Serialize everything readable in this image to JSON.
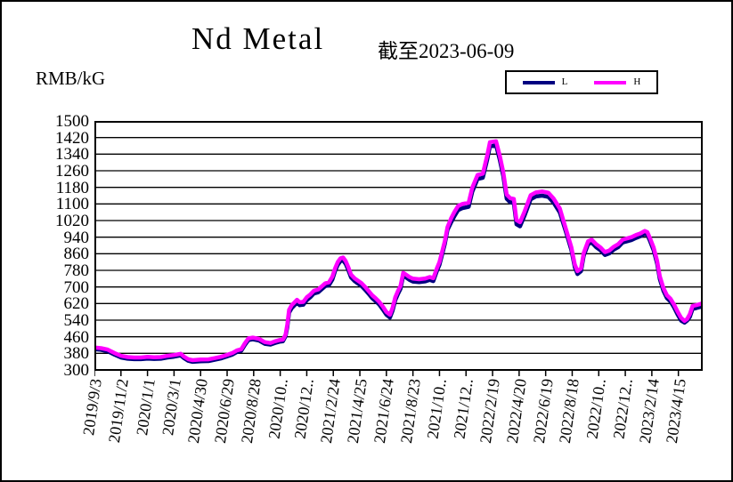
{
  "header": {
    "title": "Nd Metal",
    "subtitle": "截至2023-06-09",
    "y_unit_label": "RMB/kG"
  },
  "legend": {
    "position": "top-right",
    "items": [
      {
        "label": "L",
        "color": "#000080"
      },
      {
        "label": "H",
        "color": "#FF00FF"
      }
    ]
  },
  "colors": {
    "low_series": "#000080",
    "high_series": "#FF00FF",
    "axis": "#000000",
    "background": "#FFFFFF"
  },
  "chart_data": {
    "type": "line",
    "title": "Nd Metal 截至2023-06-09",
    "xlabel": "",
    "ylabel": "RMB/kG",
    "ylim": [
      300,
      1500
    ],
    "y_ticks": [
      300,
      380,
      460,
      540,
      620,
      700,
      780,
      860,
      940,
      1020,
      1100,
      1180,
      1260,
      1340,
      1420,
      1500
    ],
    "grid": "horizontal",
    "legend_position": "top-right",
    "x_domain_days": [
      0,
      1375
    ],
    "x_tick_days": [
      0,
      60,
      120,
      180,
      240,
      300,
      360,
      420,
      480,
      540,
      600,
      660,
      720,
      780,
      840,
      900,
      960,
      1020,
      1080,
      1140,
      1200,
      1260,
      1320
    ],
    "x_tick_labels": [
      "2019/9/3",
      "2019/11/2",
      "2020/1/1",
      "2020/3/1",
      "2020/4/30",
      "2020/6/29",
      "2020/8/28",
      "2020/10..",
      "2020/12..",
      "2021/2/24",
      "2021/4/25",
      "2021/6/24",
      "2021/8/23",
      "2021/10..",
      "2021/12..",
      "2022/2/19",
      "2022/4/20",
      "2022/6/19",
      "2022/8/18",
      "2022/10..",
      "2022/12..",
      "2023/2/14",
      "2023/4/15"
    ],
    "days": [
      0,
      15,
      30,
      45,
      60,
      75,
      90,
      105,
      120,
      135,
      150,
      165,
      180,
      195,
      203,
      212,
      222,
      240,
      258,
      272,
      285,
      300,
      312,
      322,
      332,
      340,
      348,
      358,
      372,
      385,
      398,
      408,
      418,
      426,
      432,
      436,
      440,
      446,
      452,
      458,
      464,
      472,
      480,
      488,
      496,
      506,
      514,
      522,
      530,
      538,
      544,
      550,
      556,
      562,
      568,
      574,
      580,
      588,
      596,
      604,
      612,
      620,
      628,
      636,
      644,
      652,
      660,
      668,
      674,
      680,
      686,
      692,
      698,
      704,
      712,
      720,
      734,
      748,
      758,
      766,
      774,
      780,
      786,
      792,
      798,
      806,
      814,
      822,
      832,
      846,
      854,
      866,
      878,
      888,
      894,
      908,
      916,
      924,
      932,
      940,
      948,
      954,
      962,
      972,
      986,
      998,
      1012,
      1026,
      1038,
      1052,
      1066,
      1078,
      1086,
      1092,
      1100,
      1106,
      1116,
      1124,
      1134,
      1144,
      1154,
      1164,
      1174,
      1184,
      1194,
      1204,
      1214,
      1224,
      1234,
      1244,
      1250,
      1256,
      1264,
      1272,
      1278,
      1286,
      1294,
      1302,
      1310,
      1318,
      1326,
      1334,
      1340,
      1346,
      1352,
      1360,
      1370,
      1375
    ],
    "series": [
      {
        "name": "L",
        "color": "#000080",
        "values": [
          400,
          397,
          390,
          374,
          360,
          354,
          352,
          352,
          355,
          353,
          354,
          360,
          364,
          370,
          356,
          344,
          339,
          342,
          343,
          349,
          355,
          365,
          374,
          386,
          392,
          420,
          444,
          448,
          442,
          426,
          422,
          430,
          436,
          438,
          462,
          506,
          576,
          598,
          611,
          624,
          612,
          614,
          636,
          650,
          668,
          674,
          689,
          704,
          708,
          736,
          776,
          806,
          824,
          828,
          811,
          781,
          746,
          728,
          716,
          704,
          686,
          666,
          646,
          631,
          614,
          591,
          566,
          552,
          586,
          636,
          666,
          691,
          754,
          746,
          734,
          726,
          723,
          727,
          734,
          728,
          776,
          806,
          856,
          906,
          974,
          1010,
          1042,
          1070,
          1080,
          1086,
          1158,
          1220,
          1226,
          1315,
          1378,
          1382,
          1315,
          1235,
          1125,
          1108,
          1104,
          1002,
          992,
          1042,
          1122,
          1136,
          1140,
          1134,
          1106,
          1058,
          964,
          878,
          794,
          762,
          776,
          850,
          906,
          914,
          892,
          876,
          854,
          862,
          880,
          892,
          914,
          920,
          926,
          936,
          944,
          956,
          950,
          920,
          876,
          812,
          738,
          682,
          646,
          630,
          602,
          568,
          538,
          528,
          538,
          556,
          594,
          598,
          604,
          608
        ]
      },
      {
        "name": "H",
        "color": "#FF00FF",
        "values": [
          408,
          405,
          398,
          382,
          368,
          362,
          360,
          360,
          363,
          361,
          362,
          368,
          372,
          378,
          364,
          352,
          347,
          350,
          351,
          357,
          363,
          373,
          382,
          394,
          400,
          428,
          452,
          456,
          450,
          434,
          430,
          438,
          444,
          446,
          470,
          520,
          590,
          612,
          625,
          638,
          626,
          628,
          650,
          664,
          682,
          688,
          703,
          718,
          722,
          750,
          790,
          820,
          838,
          842,
          825,
          795,
          760,
          742,
          730,
          718,
          700,
          680,
          660,
          645,
          628,
          605,
          580,
          566,
          600,
          650,
          680,
          705,
          768,
          760,
          748,
          740,
          737,
          741,
          748,
          742,
          790,
          820,
          870,
          920,
          988,
          1030,
          1062,
          1090,
          1100,
          1106,
          1178,
          1240,
          1246,
          1335,
          1398,
          1402,
          1335,
          1255,
          1145,
          1128,
          1124,
          1022,
          1012,
          1062,
          1142,
          1156,
          1160,
          1154,
          1126,
          1078,
          978,
          892,
          808,
          776,
          790,
          864,
          920,
          928,
          906,
          890,
          868,
          876,
          894,
          906,
          928,
          934,
          940,
          950,
          958,
          970,
          964,
          934,
          890,
          826,
          752,
          696,
          660,
          644,
          616,
          582,
          552,
          536,
          546,
          570,
          608,
          612,
          618,
          622
        ]
      }
    ]
  }
}
